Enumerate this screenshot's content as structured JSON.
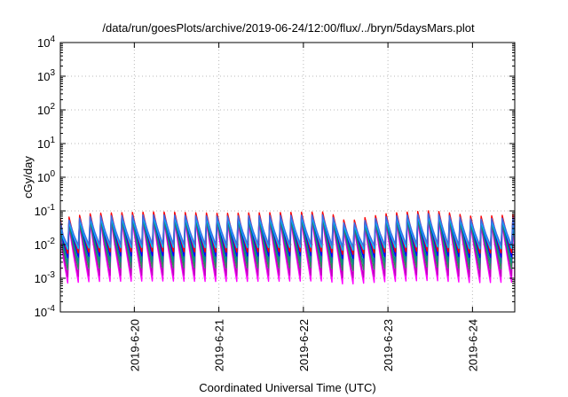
{
  "chart_data": {
    "type": "line",
    "title": "/data/run/goesPlots/archive/2019-06-24/12:00/flux/../bryn/5daysMars.plot",
    "xlabel": "Coordinated Universal Time (UTC)",
    "ylabel": "cGy/day",
    "yscale": "log",
    "ylim": [
      0.0001,
      10000
    ],
    "xlim": [
      "2019-06-19T03:00",
      "2019-06-24T12:00"
    ],
    "grid": true,
    "y_ticks": [
      {
        "base": "10",
        "exp": "-4"
      },
      {
        "base": "10",
        "exp": "-3"
      },
      {
        "base": "10",
        "exp": "-2"
      },
      {
        "base": "10",
        "exp": "-1"
      },
      {
        "base": "10",
        "exp": "0"
      },
      {
        "base": "10",
        "exp": "1"
      },
      {
        "base": "10",
        "exp": "2"
      },
      {
        "base": "10",
        "exp": "3"
      },
      {
        "base": "10",
        "exp": "4"
      }
    ],
    "x_ticks": [
      {
        "label": "2019-6-20",
        "t": "2019-06-20T00:00"
      },
      {
        "label": "2019-6-21",
        "t": "2019-06-21T00:00"
      },
      {
        "label": "2019-6-22",
        "t": "2019-06-22T00:00"
      },
      {
        "label": "2019-6-23",
        "t": "2019-06-23T00:00"
      },
      {
        "label": "2019-6-24",
        "t": "2019-06-24T00:00"
      }
    ],
    "series": [
      {
        "color": "#ff00ff",
        "peak": 0.045,
        "trough": 0.0008
      },
      {
        "color": "#c000c0",
        "peak": 0.05,
        "trough": 0.0012
      },
      {
        "color": "#2e8b57",
        "peak": 0.055,
        "trough": 0.002
      },
      {
        "color": "#008b8b",
        "peak": 0.065,
        "trough": 0.003
      },
      {
        "color": "#0000ff",
        "peak": 0.075,
        "trough": 0.0045
      },
      {
        "color": "#ff0000",
        "peak": 0.085,
        "trough": 0.006
      },
      {
        "color": "#00c0ff",
        "peak": 0.06,
        "trough": 0.008
      },
      {
        "color": "#4169e1",
        "peak": 0.07,
        "trough": 0.01
      }
    ],
    "cycle_hours": 3,
    "envelope": [
      {
        "t": "2019-06-19T03:00",
        "factor": 0.7
      },
      {
        "t": "2019-06-19T12:00",
        "factor": 1.0
      },
      {
        "t": "2019-06-20T06:00",
        "factor": 1.1
      },
      {
        "t": "2019-06-21T00:00",
        "factor": 1.0
      },
      {
        "t": "2019-06-22T06:00",
        "factor": 1.1
      },
      {
        "t": "2019-06-22T12:00",
        "factor": 0.55
      },
      {
        "t": "2019-06-23T00:00",
        "factor": 1.0
      },
      {
        "t": "2019-06-23T12:00",
        "factor": 1.2
      },
      {
        "t": "2019-06-24T00:00",
        "factor": 0.8
      },
      {
        "t": "2019-06-24T12:00",
        "factor": 0.9
      }
    ]
  }
}
